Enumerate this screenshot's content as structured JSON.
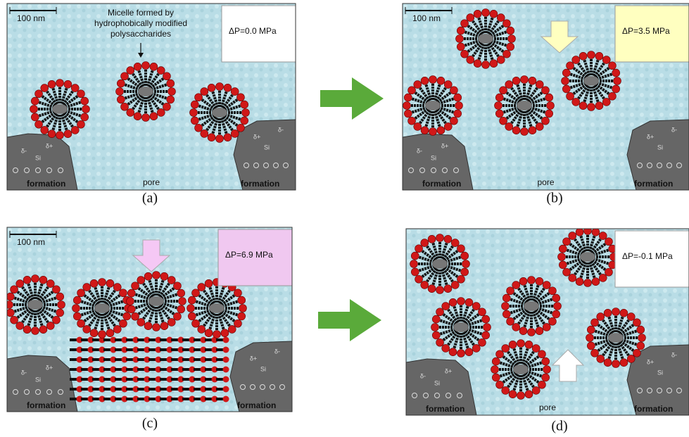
{
  "panels": [
    {
      "label": "(a)",
      "scale_bar": "100 nm",
      "pressure": "ΔP=0.0 MPa",
      "annotation": [
        "Micelle formed by",
        "hydrophobically modified",
        "polysaccharides"
      ],
      "pore": "pore",
      "formation_left": "formation",
      "formation_right": "formation"
    },
    {
      "label": "(b)",
      "scale_bar": "100 nm",
      "pressure": "ΔP=3.5 MPa",
      "pore": "pore",
      "formation_left": "formation",
      "formation_right": "formation"
    },
    {
      "label": "(c)",
      "scale_bar": "100 nm",
      "pressure": "ΔP=6.9 MPa",
      "formation_left": "formation",
      "formation_right": "formation"
    },
    {
      "label": "(d)",
      "pressure": "ΔP=-0.1 MPa",
      "pore": "pore",
      "formation_left": "formation",
      "formation_right": "formation"
    }
  ],
  "surface_labels": {
    "si": "Si",
    "delta_plus": "δ+",
    "delta_minus": "δ-"
  }
}
